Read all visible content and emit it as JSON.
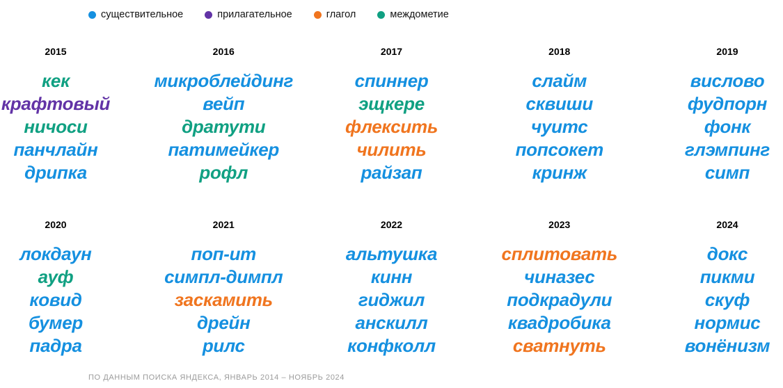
{
  "legend": {
    "items": [
      {
        "key": "noun",
        "label": "существительное"
      },
      {
        "key": "adjective",
        "label": "прилагательное"
      },
      {
        "key": "verb",
        "label": "глагол"
      },
      {
        "key": "interjection",
        "label": "междометие"
      }
    ]
  },
  "chart_data": {
    "type": "table",
    "legend_position": "top",
    "pos_colors": {
      "noun": "#1590e0",
      "adjective": "#6233a6",
      "verb": "#f0751f",
      "interjection": "#10a082"
    },
    "years": [
      {
        "year": "2015",
        "words": [
          {
            "text": "кек",
            "pos": "interjection"
          },
          {
            "text": "крафтовый",
            "pos": "adjective"
          },
          {
            "text": "ничоси",
            "pos": "interjection"
          },
          {
            "text": "панчлайн",
            "pos": "noun"
          },
          {
            "text": "дрипка",
            "pos": "noun"
          }
        ]
      },
      {
        "year": "2016",
        "words": [
          {
            "text": "микроблейдинг",
            "pos": "noun"
          },
          {
            "text": "вейп",
            "pos": "noun"
          },
          {
            "text": "дратути",
            "pos": "interjection"
          },
          {
            "text": "патимейкер",
            "pos": "noun"
          },
          {
            "text": "рофл",
            "pos": "interjection"
          }
        ]
      },
      {
        "year": "2017",
        "words": [
          {
            "text": "спиннер",
            "pos": "noun"
          },
          {
            "text": "эщкере",
            "pos": "interjection"
          },
          {
            "text": "флексить",
            "pos": "verb"
          },
          {
            "text": "чилить",
            "pos": "verb"
          },
          {
            "text": "райзап",
            "pos": "noun"
          }
        ]
      },
      {
        "year": "2018",
        "words": [
          {
            "text": "слайм",
            "pos": "noun"
          },
          {
            "text": "сквиши",
            "pos": "noun"
          },
          {
            "text": "чуитс",
            "pos": "noun"
          },
          {
            "text": "попсокет",
            "pos": "noun"
          },
          {
            "text": "кринж",
            "pos": "noun"
          }
        ]
      },
      {
        "year": "2019",
        "words": [
          {
            "text": "вислово",
            "pos": "noun"
          },
          {
            "text": "фудпорн",
            "pos": "noun"
          },
          {
            "text": "фонк",
            "pos": "noun"
          },
          {
            "text": "глэмпинг",
            "pos": "noun"
          },
          {
            "text": "симп",
            "pos": "noun"
          }
        ]
      },
      {
        "year": "2020",
        "words": [
          {
            "text": "локдаун",
            "pos": "noun"
          },
          {
            "text": "ауф",
            "pos": "interjection"
          },
          {
            "text": "ковид",
            "pos": "noun"
          },
          {
            "text": "бумер",
            "pos": "noun"
          },
          {
            "text": "падра",
            "pos": "noun"
          }
        ]
      },
      {
        "year": "2021",
        "words": [
          {
            "text": "поп-ит",
            "pos": "noun"
          },
          {
            "text": "симпл-димпл",
            "pos": "noun"
          },
          {
            "text": "заскамить",
            "pos": "verb"
          },
          {
            "text": "дрейн",
            "pos": "noun"
          },
          {
            "text": "рилс",
            "pos": "noun"
          }
        ]
      },
      {
        "year": "2022",
        "words": [
          {
            "text": "альтушка",
            "pos": "noun"
          },
          {
            "text": "кинн",
            "pos": "noun"
          },
          {
            "text": "гиджил",
            "pos": "noun"
          },
          {
            "text": "анскилл",
            "pos": "noun"
          },
          {
            "text": "конфколл",
            "pos": "noun"
          }
        ]
      },
      {
        "year": "2023",
        "words": [
          {
            "text": "сплитовать",
            "pos": "verb"
          },
          {
            "text": "чиназес",
            "pos": "noun"
          },
          {
            "text": "подкрадули",
            "pos": "noun"
          },
          {
            "text": "квадробика",
            "pos": "noun"
          },
          {
            "text": "сватнуть",
            "pos": "verb"
          }
        ]
      },
      {
        "year": "2024",
        "words": [
          {
            "text": "докс",
            "pos": "noun"
          },
          {
            "text": "пикми",
            "pos": "noun"
          },
          {
            "text": "скуф",
            "pos": "noun"
          },
          {
            "text": "нормис",
            "pos": "noun"
          },
          {
            "text": "вонёнизм",
            "pos": "noun"
          }
        ]
      }
    ]
  },
  "footer": {
    "source": "ПО ДАННЫМ ПОИСКА ЯНДЕКСА, ЯНВАРЬ 2014 – НОЯБРЬ 2024"
  }
}
